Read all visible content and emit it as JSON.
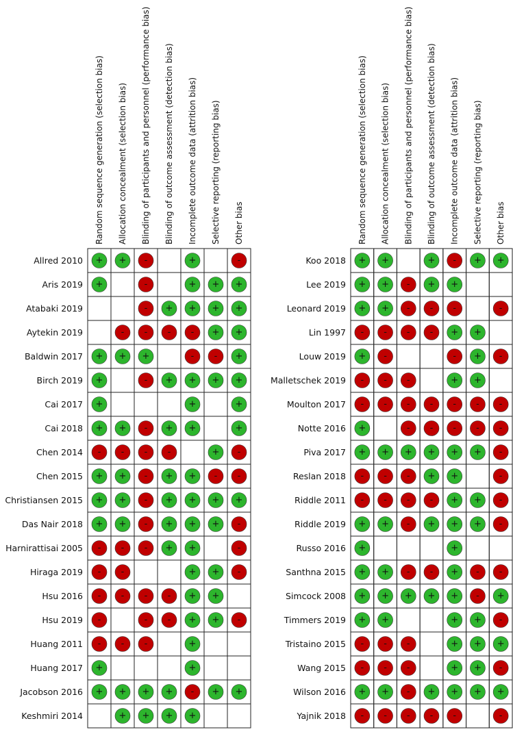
{
  "domains": [
    "Random sequence generation (selection bias)",
    "Allocation concealment (selection bias)",
    "Blinding of participants and personnel (performance bias)",
    "Blinding of outcome assessment (detection bias)",
    "Incomplete outcome data (attrition bias)",
    "Selective reporting (reporting bias)",
    "Other bias"
  ],
  "colors": {
    "+": "#2db52d",
    "-": "#c00000"
  },
  "panels": [
    {
      "studies": [
        {
          "name": "Allred 2010",
          "judgments": [
            "+",
            "+",
            "-",
            null,
            "+",
            null,
            "-"
          ]
        },
        {
          "name": "Aris 2019",
          "judgments": [
            "+",
            null,
            "-",
            null,
            "+",
            "+",
            "+"
          ]
        },
        {
          "name": "Atabaki 2019",
          "judgments": [
            null,
            null,
            "-",
            "+",
            "+",
            "+",
            "+"
          ]
        },
        {
          "name": "Aytekin 2019",
          "judgments": [
            null,
            "-",
            "-",
            "-",
            "-",
            "+",
            "+"
          ]
        },
        {
          "name": "Baldwin 2017",
          "judgments": [
            "+",
            "+",
            "+",
            null,
            "-",
            "-",
            "+"
          ]
        },
        {
          "name": "Birch 2019",
          "judgments": [
            "+",
            null,
            "-",
            "+",
            "+",
            "+",
            "+"
          ]
        },
        {
          "name": "Cai 2017",
          "judgments": [
            "+",
            null,
            null,
            null,
            "+",
            null,
            "+"
          ]
        },
        {
          "name": "Cai 2018",
          "judgments": [
            "+",
            "+",
            "-",
            "+",
            "+",
            null,
            "+"
          ]
        },
        {
          "name": "Chen 2014",
          "judgments": [
            "-",
            "-",
            "-",
            "-",
            null,
            "+",
            "-"
          ]
        },
        {
          "name": "Chen 2015",
          "judgments": [
            "+",
            "+",
            "-",
            "+",
            "+",
            "-",
            "-"
          ]
        },
        {
          "name": "Christiansen 2015",
          "judgments": [
            "+",
            "+",
            "-",
            "+",
            "+",
            "+",
            "+"
          ]
        },
        {
          "name": "Das Nair 2018",
          "judgments": [
            "+",
            "+",
            "-",
            "+",
            "+",
            "+",
            "-"
          ]
        },
        {
          "name": "Harnirattisai 2005",
          "judgments": [
            "-",
            "-",
            "-",
            "+",
            "+",
            null,
            "-"
          ]
        },
        {
          "name": "Hiraga 2019",
          "judgments": [
            "-",
            "-",
            null,
            null,
            "+",
            "+",
            "-"
          ]
        },
        {
          "name": "Hsu 2016",
          "judgments": [
            "-",
            "-",
            "-",
            "-",
            "+",
            "+",
            null
          ]
        },
        {
          "name": "Hsu 2019",
          "judgments": [
            "-",
            null,
            "-",
            "-",
            "+",
            "+",
            "-"
          ]
        },
        {
          "name": "Huang 2011",
          "judgments": [
            "-",
            "-",
            "-",
            null,
            "+",
            null,
            null
          ]
        },
        {
          "name": "Huang 2017",
          "judgments": [
            "+",
            null,
            null,
            null,
            "+",
            null,
            null
          ]
        },
        {
          "name": "Jacobson 2016",
          "judgments": [
            "+",
            "+",
            "+",
            "+",
            "-",
            "+",
            "+"
          ]
        },
        {
          "name": "Keshmiri 2014",
          "judgments": [
            null,
            "+",
            "+",
            "+",
            "+",
            null,
            null
          ]
        }
      ]
    },
    {
      "studies": [
        {
          "name": "Koo 2018",
          "judgments": [
            "+",
            "+",
            null,
            "+",
            "-",
            "+",
            "+"
          ]
        },
        {
          "name": "Lee 2019",
          "judgments": [
            "+",
            "+",
            "-",
            "+",
            "+",
            null,
            null
          ]
        },
        {
          "name": "Leonard 2019",
          "judgments": [
            "+",
            "+",
            "-",
            "-",
            "-",
            null,
            "-"
          ]
        },
        {
          "name": "Lin 1997",
          "judgments": [
            "-",
            "-",
            "-",
            "-",
            "+",
            "+",
            null
          ]
        },
        {
          "name": "Louw 2019",
          "judgments": [
            "+",
            "-",
            null,
            null,
            "-",
            "+",
            "-"
          ]
        },
        {
          "name": "Malletschek 2019",
          "judgments": [
            "-",
            "-",
            "-",
            null,
            "+",
            "+",
            null
          ]
        },
        {
          "name": "Moulton 2017",
          "judgments": [
            "-",
            "-",
            "-",
            "-",
            "-",
            "-",
            "-"
          ]
        },
        {
          "name": "Notte 2016",
          "judgments": [
            "+",
            null,
            "-",
            "-",
            "-",
            "-",
            "-"
          ]
        },
        {
          "name": "Piva 2017",
          "judgments": [
            "+",
            "+",
            "+",
            "+",
            "+",
            "+",
            "-"
          ]
        },
        {
          "name": "Reslan 2018",
          "judgments": [
            "-",
            "-",
            "-",
            "+",
            "+",
            null,
            "-"
          ]
        },
        {
          "name": "Riddle 2011",
          "judgments": [
            "-",
            "-",
            "-",
            "-",
            "+",
            "+",
            "-"
          ]
        },
        {
          "name": "Riddle 2019",
          "judgments": [
            "+",
            "+",
            "-",
            "+",
            "+",
            "+",
            "-"
          ]
        },
        {
          "name": "Russo 2016",
          "judgments": [
            "+",
            null,
            null,
            null,
            "+",
            null,
            null
          ]
        },
        {
          "name": "Santhna 2015",
          "judgments": [
            "+",
            "+",
            "-",
            "-",
            "+",
            "-",
            "-"
          ]
        },
        {
          "name": "Simcock 2008",
          "judgments": [
            "+",
            "+",
            "+",
            "+",
            "+",
            "-",
            "+"
          ]
        },
        {
          "name": "Timmers 2019",
          "judgments": [
            "+",
            "+",
            null,
            null,
            "+",
            "+",
            "-"
          ]
        },
        {
          "name": "Tristaino 2015",
          "judgments": [
            "-",
            "-",
            "-",
            null,
            "+",
            "+",
            "+"
          ]
        },
        {
          "name": "Wang 2015",
          "judgments": [
            "-",
            "-",
            "-",
            null,
            "+",
            "+",
            "-"
          ]
        },
        {
          "name": "Wilson 2016",
          "judgments": [
            "+",
            "+",
            "-",
            "+",
            "+",
            "+",
            "+"
          ]
        },
        {
          "name": "Yajnik 2018",
          "judgments": [
            "-",
            "-",
            "-",
            "-",
            "-",
            null,
            "-"
          ]
        }
      ]
    }
  ]
}
